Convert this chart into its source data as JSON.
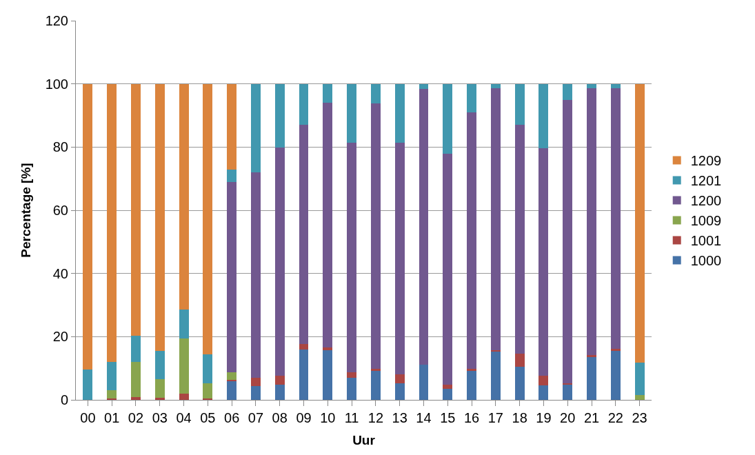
{
  "chart_data": {
    "type": "bar",
    "stacked": true,
    "xlabel": "Uur",
    "ylabel": "Percentage [%]",
    "categories": [
      "00",
      "01",
      "02",
      "03",
      "04",
      "05",
      "06",
      "07",
      "08",
      "09",
      "10",
      "11",
      "12",
      "13",
      "14",
      "15",
      "16",
      "17",
      "18",
      "19",
      "20",
      "21",
      "22",
      "23"
    ],
    "ylim": [
      0,
      120
    ],
    "yticks": [
      0,
      20,
      40,
      60,
      80,
      100,
      120
    ],
    "grid": "y",
    "legend": "right",
    "series": [
      {
        "name": "1000",
        "color": "#4572a7",
        "values": [
          0,
          0,
          0,
          0,
          0,
          0,
          6.0,
          4.4,
          4.9,
          16.0,
          15.7,
          6.9,
          9.1,
          5.2,
          11.2,
          3.4,
          9.1,
          15.3,
          10.5,
          4.6,
          4.9,
          13.7,
          15.6,
          0
        ]
      },
      {
        "name": "1001",
        "color": "#aa4643",
        "values": [
          0,
          0.4,
          0.9,
          0.6,
          2.0,
          0.4,
          0.3,
          2.5,
          2.8,
          1.6,
          0.9,
          1.8,
          0.7,
          2.8,
          0,
          1.5,
          0.7,
          0.4,
          4.1,
          3.1,
          0.3,
          0.4,
          0.5,
          0
        ]
      },
      {
        "name": "1009",
        "color": "#89a54e",
        "values": [
          0,
          2.7,
          11.0,
          6.0,
          17.4,
          4.8,
          2.5,
          0,
          0,
          0,
          0,
          0,
          0,
          0,
          0,
          0,
          0,
          0,
          0,
          0,
          0,
          0,
          0,
          1.5
        ]
      },
      {
        "name": "1200",
        "color": "#71588f",
        "values": [
          0,
          0,
          0,
          0,
          0,
          0,
          60.2,
          65.2,
          72.1,
          69.4,
          77.5,
          72.6,
          84.0,
          73.3,
          87.1,
          72.9,
          81.1,
          82.9,
          72.4,
          71.9,
          89.7,
          84.5,
          82.5,
          0
        ]
      },
      {
        "name": "1201",
        "color": "#4198af",
        "values": [
          9.5,
          8.8,
          8.4,
          8.9,
          9.1,
          9.1,
          3.8,
          27.9,
          20.2,
          13.0,
          5.9,
          18.7,
          6.2,
          18.7,
          1.7,
          22.2,
          9.1,
          1.4,
          13.0,
          20.4,
          5.1,
          1.4,
          1.4,
          10.3
        ]
      },
      {
        "name": "1209",
        "color": "#db843d",
        "values": [
          90.5,
          88.1,
          79.7,
          84.5,
          71.5,
          85.7,
          27.2,
          0,
          0,
          0,
          0,
          0,
          0,
          0,
          0,
          0,
          0,
          0,
          0,
          0,
          0,
          0,
          0,
          88.2
        ]
      }
    ]
  }
}
